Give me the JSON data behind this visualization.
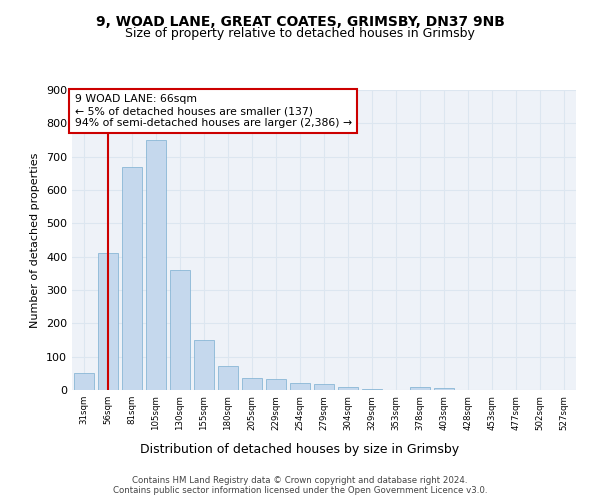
{
  "title_line1": "9, WOAD LANE, GREAT COATES, GRIMSBY, DN37 9NB",
  "title_line2": "Size of property relative to detached houses in Grimsby",
  "xlabel": "Distribution of detached houses by size in Grimsby",
  "ylabel": "Number of detached properties",
  "bar_labels": [
    "31sqm",
    "56sqm",
    "81sqm",
    "105sqm",
    "130sqm",
    "155sqm",
    "180sqm",
    "205sqm",
    "229sqm",
    "254sqm",
    "279sqm",
    "304sqm",
    "329sqm",
    "353sqm",
    "378sqm",
    "403sqm",
    "428sqm",
    "453sqm",
    "477sqm",
    "502sqm",
    "527sqm"
  ],
  "bar_values": [
    50,
    410,
    670,
    750,
    360,
    150,
    73,
    37,
    33,
    22,
    17,
    8,
    2,
    0,
    8,
    7,
    0,
    0,
    0,
    0,
    0
  ],
  "bar_color": "#c5d8ed",
  "bar_edge_color": "#7aaed0",
  "grid_color": "#dce6f0",
  "background_color": "#eef2f8",
  "vline_x_index": 1,
  "vline_color": "#cc0000",
  "annotation_text": "9 WOAD LANE: 66sqm\n← 5% of detached houses are smaller (137)\n94% of semi-detached houses are larger (2,386) →",
  "annotation_box_color": "#ffffff",
  "annotation_box_edge": "#cc0000",
  "footer_text": "Contains HM Land Registry data © Crown copyright and database right 2024.\nContains public sector information licensed under the Open Government Licence v3.0.",
  "ylim": [
    0,
    900
  ],
  "yticks": [
    0,
    100,
    200,
    300,
    400,
    500,
    600,
    700,
    800,
    900
  ]
}
